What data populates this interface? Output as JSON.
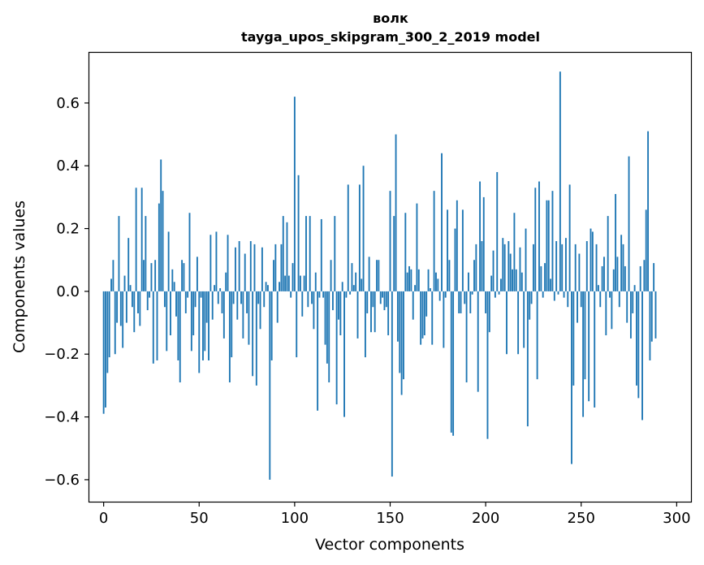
{
  "chart_data": {
    "type": "bar",
    "title_line1": "волк",
    "title_line2": "tayga_upos_skipgram_300_2_2019 model",
    "xlabel": "Vector components",
    "ylabel": "Components values",
    "xlim": [
      -7.5,
      307.5
    ],
    "ylim": [
      -0.67,
      0.76
    ],
    "x_ticks": [
      0,
      50,
      100,
      150,
      200,
      250,
      300
    ],
    "x_tick_labels": [
      "0",
      "50",
      "100",
      "150",
      "200",
      "250",
      "300"
    ],
    "y_ticks": [
      -0.6,
      -0.4,
      -0.2,
      0.0,
      0.2,
      0.4,
      0.6
    ],
    "y_tick_labels": [
      "−0.6",
      "−0.4",
      "−0.2",
      "0.0",
      "0.2",
      "0.4",
      "0.6"
    ],
    "bar_color": "#1f77b4",
    "bar_width": 0.8,
    "values": [
      -0.39,
      -0.37,
      -0.26,
      -0.21,
      0.04,
      0.1,
      -0.2,
      -0.1,
      0.24,
      -0.11,
      -0.18,
      0.05,
      -0.1,
      0.17,
      0.02,
      -0.05,
      -0.13,
      0.33,
      -0.07,
      -0.11,
      0.33,
      0.1,
      0.24,
      -0.06,
      -0.02,
      0.09,
      -0.23,
      0.1,
      -0.22,
      0.28,
      0.42,
      0.32,
      -0.05,
      -0.19,
      0.19,
      -0.14,
      0.07,
      0.03,
      -0.08,
      -0.22,
      -0.29,
      0.1,
      0.09,
      -0.07,
      -0.02,
      0.25,
      -0.19,
      -0.14,
      -0.05,
      0.11,
      -0.26,
      -0.02,
      -0.22,
      -0.19,
      -0.1,
      -0.22,
      0.18,
      -0.09,
      0.02,
      0.19,
      -0.04,
      0.01,
      -0.07,
      -0.15,
      0.06,
      0.18,
      -0.29,
      -0.21,
      -0.04,
      0.14,
      -0.09,
      0.16,
      -0.04,
      -0.15,
      0.12,
      -0.07,
      -0.17,
      0.16,
      -0.27,
      0.15,
      -0.3,
      -0.04,
      -0.12,
      0.14,
      -0.05,
      0.03,
      0.02,
      -0.6,
      -0.22,
      0.1,
      0.15,
      -0.1,
      0.03,
      0.15,
      0.24,
      0.05,
      0.22,
      0.05,
      -0.02,
      0.09,
      0.62,
      -0.21,
      0.37,
      0.05,
      -0.08,
      0.05,
      0.24,
      -0.05,
      0.24,
      -0.04,
      -0.12,
      0.06,
      -0.38,
      -0.02,
      0.23,
      -0.02,
      -0.17,
      -0.23,
      -0.29,
      0.1,
      -0.06,
      0.24,
      -0.36,
      -0.09,
      -0.14,
      0.03,
      -0.4,
      -0.02,
      0.34,
      -0.01,
      0.09,
      0.02,
      0.06,
      -0.15,
      0.34,
      0.04,
      0.4,
      -0.21,
      -0.07,
      0.11,
      -0.13,
      -0.05,
      -0.13,
      0.1,
      0.1,
      -0.04,
      -0.02,
      -0.06,
      -0.05,
      -0.14,
      0.32,
      -0.59,
      0.24,
      0.5,
      -0.16,
      -0.26,
      -0.33,
      -0.28,
      0.25,
      0.06,
      0.08,
      0.07,
      -0.09,
      0.02,
      0.28,
      0.07,
      -0.17,
      -0.15,
      -0.14,
      -0.08,
      0.07,
      0.01,
      -0.17,
      0.32,
      0.06,
      0.04,
      -0.03,
      0.44,
      -0.18,
      -0.02,
      0.26,
      0.1,
      -0.45,
      -0.46,
      0.2,
      0.29,
      -0.07,
      -0.07,
      0.26,
      -0.04,
      -0.29,
      0.06,
      -0.07,
      -0.01,
      0.1,
      0.15,
      -0.32,
      0.35,
      0.16,
      0.3,
      -0.07,
      -0.47,
      -0.13,
      0.05,
      0.13,
      -0.02,
      0.38,
      -0.01,
      0.04,
      0.17,
      0.15,
      -0.2,
      0.16,
      0.12,
      0.07,
      0.25,
      0.07,
      -0.2,
      0.14,
      0.06,
      -0.18,
      0.2,
      -0.43,
      -0.09,
      -0.04,
      0.15,
      0.33,
      -0.28,
      0.35,
      0.08,
      -0.02,
      0.09,
      0.29,
      0.29,
      0.04,
      0.32,
      -0.03,
      0.16,
      -0.01,
      0.7,
      0.15,
      -0.02,
      0.17,
      -0.05,
      0.34,
      -0.55,
      -0.3,
      0.15,
      -0.1,
      0.12,
      -0.05,
      -0.4,
      -0.28,
      0.16,
      -0.35,
      0.2,
      0.19,
      -0.37,
      0.15,
      0.02,
      -0.05,
      0.08,
      0.11,
      -0.14,
      0.24,
      -0.02,
      -0.12,
      0.07,
      0.31,
      0.11,
      -0.05,
      0.18,
      0.15,
      0.08,
      -0.1,
      0.43,
      -0.15,
      -0.07,
      0.02,
      -0.3,
      -0.34,
      0.08,
      -0.41,
      0.1,
      0.26,
      0.51,
      -0.22,
      -0.16,
      0.09,
      -0.15
    ]
  }
}
